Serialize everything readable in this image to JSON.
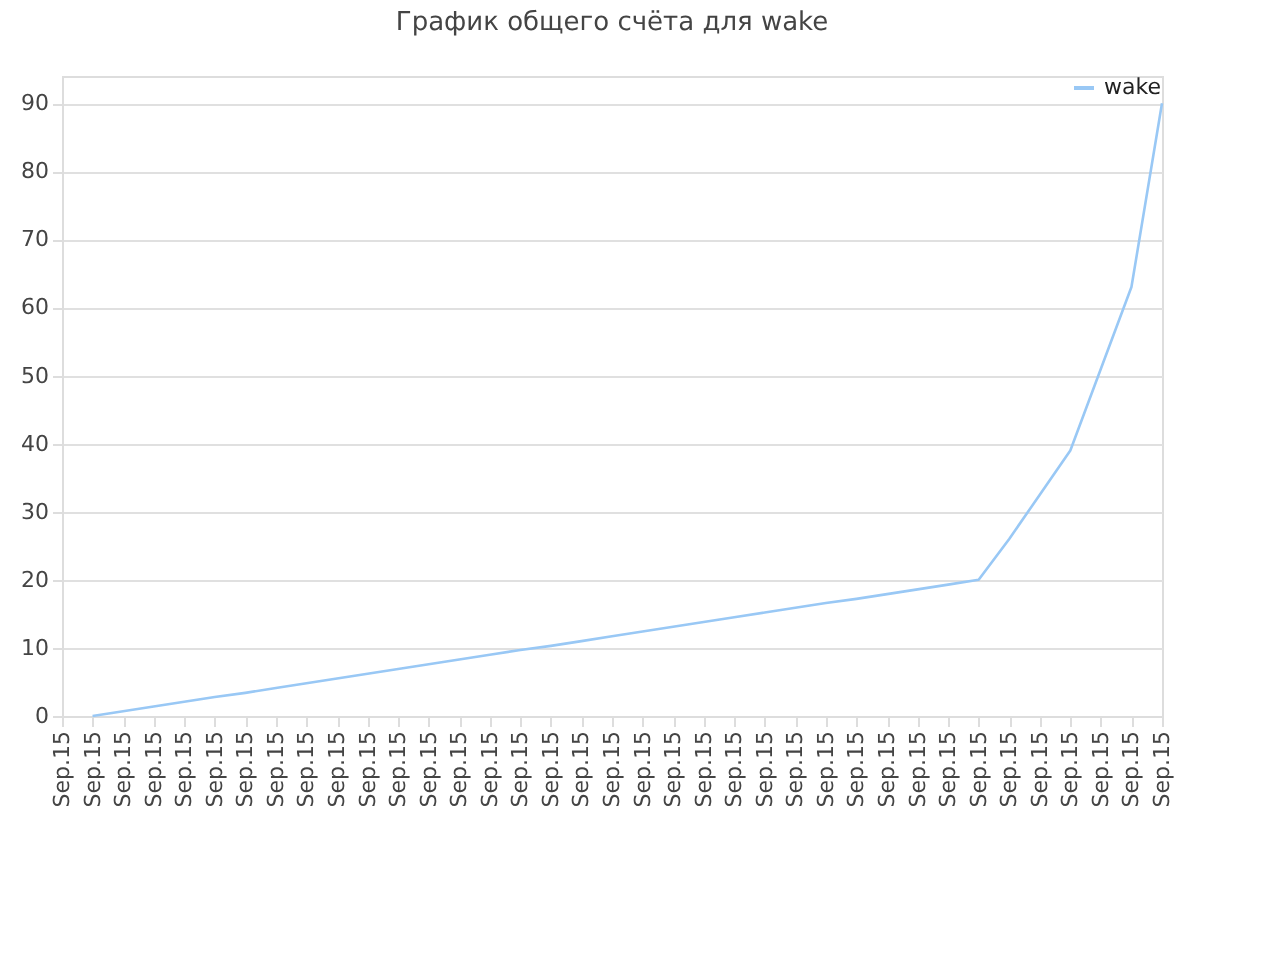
{
  "chart_data": {
    "type": "line",
    "title": "График общего счёта для wake",
    "categories": [
      "Sep.15",
      "Sep.15",
      "Sep.15",
      "Sep.15",
      "Sep.15",
      "Sep.15",
      "Sep.15",
      "Sep.15",
      "Sep.15",
      "Sep.15",
      "Sep.15",
      "Sep.15",
      "Sep.15",
      "Sep.15",
      "Sep.15",
      "Sep.15",
      "Sep.15",
      "Sep.15",
      "Sep.15",
      "Sep.15",
      "Sep.15",
      "Sep.15",
      "Sep.15",
      "Sep.15",
      "Sep.15",
      "Sep.15",
      "Sep.15",
      "Sep.15",
      "Sep.15",
      "Sep.15",
      "Sep.15",
      "Sep.15",
      "Sep.15",
      "Sep.15",
      "Sep.15",
      "Sep.15",
      "Sep.15"
    ],
    "series": [
      {
        "name": "wake",
        "color": "#99c8f5",
        "values": [
          null,
          0,
          0.7,
          1.4,
          2.1,
          2.8,
          3.4,
          4.1,
          4.8,
          5.5,
          6.2,
          6.9,
          7.6,
          8.3,
          9.0,
          9.7,
          10.3,
          11.0,
          11.7,
          12.4,
          13.1,
          13.8,
          14.5,
          15.2,
          15.9,
          16.6,
          17.2,
          17.9,
          18.6,
          19.3,
          20.0,
          26,
          32.5,
          39,
          51,
          63,
          90
        ]
      }
    ],
    "ylim": [
      0,
      94
    ],
    "yticks": [
      0,
      10,
      20,
      30,
      40,
      50,
      60,
      70,
      80,
      90
    ],
    "grid": "y",
    "legend": "top right",
    "marker": "none",
    "line_style": "solid"
  }
}
